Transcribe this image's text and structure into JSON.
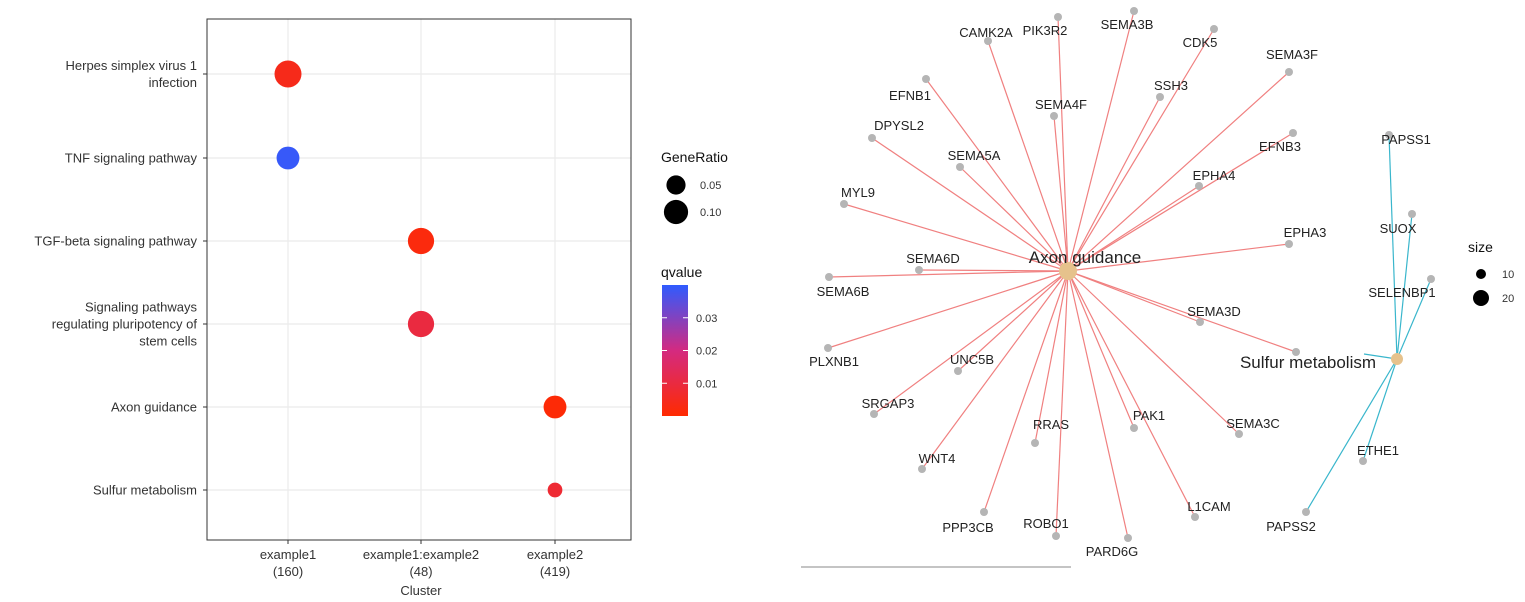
{
  "colors": {
    "q_low": "#ff2a00",
    "q_mid": "#d42a80",
    "q_high": "#2f5bff",
    "gene_node": "#b5b5b5",
    "category_node": "#e6c28c",
    "edge_axon": "#f08080",
    "edge_sulfur": "#39b6cc",
    "grid": "#ebebeb",
    "panel_border": "#333333"
  },
  "chart_data": [
    {
      "type": "scatter",
      "subtype": "dotplot",
      "xlabel": "Cluster",
      "ylabel": "",
      "categories_x": [
        {
          "name": "example1",
          "count": "(160)"
        },
        {
          "name": "example1:example2",
          "count": "(48)"
        },
        {
          "name": "example2",
          "count": "(419)"
        }
      ],
      "categories_y": [
        {
          "lines": [
            "Herpes simplex virus 1",
            "infection"
          ]
        },
        {
          "lines": [
            "TNF signaling pathway"
          ]
        },
        {
          "lines": [
            "TGF-beta signaling pathway"
          ]
        },
        {
          "lines": [
            "Signaling pathways",
            "regulating pluripotency of",
            "stem cells"
          ]
        },
        {
          "lines": [
            "Axon guidance"
          ]
        },
        {
          "lines": [
            "Sulfur metabolism"
          ]
        }
      ],
      "points": [
        {
          "x": "example1",
          "y": "Herpes simplex virus 1 infection",
          "gene_ratio": 0.135,
          "qvalue": 0.004
        },
        {
          "x": "example1",
          "y": "TNF signaling pathway",
          "gene_ratio": 0.085,
          "qvalue": 0.039
        },
        {
          "x": "example1:example2",
          "y": "TGF-beta signaling pathway",
          "gene_ratio": 0.125,
          "qvalue": 0.002
        },
        {
          "x": "example1:example2",
          "y": "Signaling pathways regulating pluripotency of stem cells",
          "gene_ratio": 0.125,
          "qvalue": 0.01
        },
        {
          "x": "example2",
          "y": "Axon guidance",
          "gene_ratio": 0.085,
          "qvalue": 0.001
        },
        {
          "x": "example2",
          "y": "Sulfur metabolism",
          "gene_ratio": 0.02,
          "qvalue": 0.008
        }
      ],
      "size_legend": {
        "title": "GeneRatio",
        "entries": [
          {
            "label": "0.05",
            "value": 0.05
          },
          {
            "label": "0.10",
            "value": 0.1
          }
        ]
      },
      "color_legend": {
        "title": "qvalue",
        "range": [
          0.0,
          0.04
        ],
        "ticks": [
          {
            "label": "0.03",
            "value": 0.03
          },
          {
            "label": "0.02",
            "value": 0.02
          },
          {
            "label": "0.01",
            "value": 0.01
          }
        ]
      },
      "grid": true,
      "legend_position": "right"
    },
    {
      "type": "network",
      "subtype": "cnetplot",
      "categories": [
        {
          "id": "axon",
          "label": "Axon guidance",
          "size": 29
        },
        {
          "id": "sulfur",
          "label": "Sulfur metabolism",
          "size": 6
        }
      ],
      "genes": [
        {
          "label": "CAMK2A",
          "links": [
            "axon"
          ]
        },
        {
          "label": "PIK3R2",
          "links": [
            "axon"
          ]
        },
        {
          "label": "SEMA3B",
          "links": [
            "axon"
          ]
        },
        {
          "label": "CDK5",
          "links": [
            "axon"
          ]
        },
        {
          "label": "SEMA3F",
          "links": [
            "axon"
          ]
        },
        {
          "label": "SSH3",
          "links": [
            "axon"
          ]
        },
        {
          "label": "EFNB1",
          "links": [
            "axon"
          ]
        },
        {
          "label": "SEMA4F",
          "links": [
            "axon"
          ]
        },
        {
          "label": "DPYSL2",
          "links": [
            "axon"
          ]
        },
        {
          "label": "EFNB3",
          "links": [
            "axon"
          ]
        },
        {
          "label": "SEMA5A",
          "links": [
            "axon"
          ]
        },
        {
          "label": "EPHA4",
          "links": [
            "axon"
          ]
        },
        {
          "label": "MYL9",
          "links": [
            "axon"
          ]
        },
        {
          "label": "EPHA3",
          "links": [
            "axon"
          ]
        },
        {
          "label": "SEMA6D",
          "links": [
            "axon"
          ]
        },
        {
          "label": "SEMA6B",
          "links": [
            "axon"
          ]
        },
        {
          "label": "SEMA3D",
          "links": [
            "axon"
          ]
        },
        {
          "label": "PLXNB1",
          "links": [
            "axon"
          ]
        },
        {
          "label": "UNC5B",
          "links": [
            "axon"
          ]
        },
        {
          "label": "SRGAP3",
          "links": [
            "axon"
          ]
        },
        {
          "label": "PAK1",
          "links": [
            "axon"
          ]
        },
        {
          "label": "SEMA3C",
          "links": [
            "axon"
          ]
        },
        {
          "label": "RRAS",
          "links": [
            "axon"
          ]
        },
        {
          "label": "WNT4",
          "links": [
            "axon"
          ]
        },
        {
          "label": "L1CAM",
          "links": [
            "axon"
          ]
        },
        {
          "label": "PPP3CB",
          "links": [
            "axon"
          ]
        },
        {
          "label": "ROBO1",
          "links": [
            "axon"
          ]
        },
        {
          "label": "PARD6G",
          "links": [
            "axon"
          ]
        },
        {
          "label": "",
          "links": [
            "axon"
          ]
        },
        {
          "label": "PAPSS1",
          "links": [
            "sulfur"
          ]
        },
        {
          "label": "SUOX",
          "links": [
            "sulfur"
          ]
        },
        {
          "label": "SELENBP1",
          "links": [
            "sulfur"
          ]
        },
        {
          "label": "ETHE1",
          "links": [
            "sulfur"
          ]
        },
        {
          "label": "PAPSS2",
          "links": [
            "sulfur"
          ]
        },
        {
          "label": "",
          "links": [
            "sulfur"
          ]
        }
      ],
      "size_legend": {
        "title": "size",
        "entries": [
          {
            "label": "10",
            "value": 10
          },
          {
            "label": "20",
            "value": 20
          }
        ]
      },
      "legend_position": "right"
    }
  ]
}
